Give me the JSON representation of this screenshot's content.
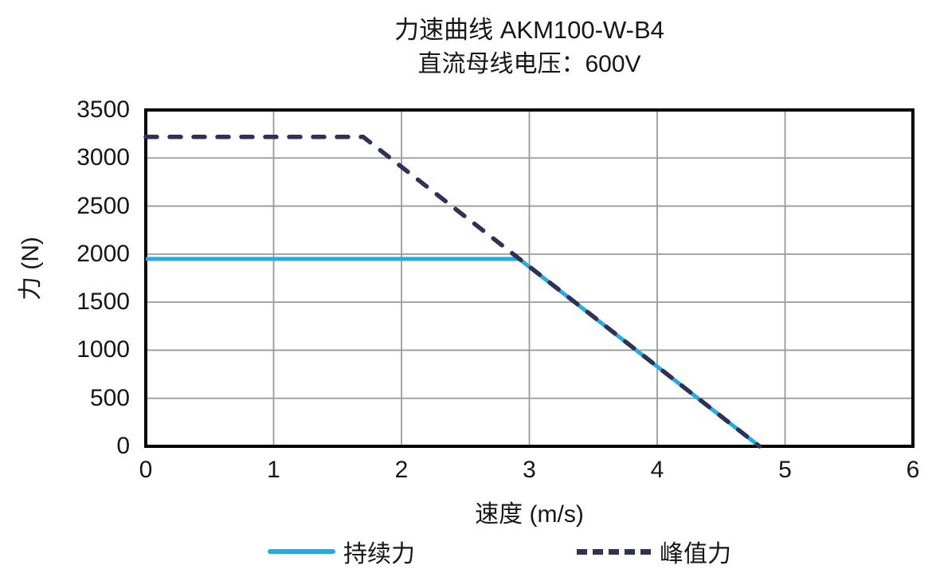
{
  "chart_data": {
    "type": "line",
    "title": "力速曲线 AKM100-W-B4",
    "subtitle": "直流母线电压：600V",
    "xlabel": "速度 (m/s)",
    "ylabel": "力 (N)",
    "xlim": [
      0,
      6
    ],
    "ylim": [
      0,
      3500
    ],
    "x_ticks": [
      0,
      1,
      2,
      3,
      4,
      5,
      6
    ],
    "y_ticks": [
      0,
      500,
      1000,
      1500,
      2000,
      2500,
      3000,
      3500
    ],
    "grid": true,
    "grid_color": "#9a9a9a",
    "frame_color": "#000000",
    "legend_position": "bottom",
    "series": [
      {
        "name": "持续力",
        "style": "solid",
        "color": "#29A9E1",
        "width": 5,
        "points": [
          [
            0,
            1950
          ],
          [
            2.92,
            1950
          ],
          [
            4.8,
            0
          ]
        ]
      },
      {
        "name": "峰值力",
        "style": "dashed",
        "color": "#2E3256",
        "width": 5.5,
        "points": [
          [
            0,
            3220
          ],
          [
            1.7,
            3220
          ],
          [
            4.8,
            0
          ]
        ]
      }
    ]
  }
}
